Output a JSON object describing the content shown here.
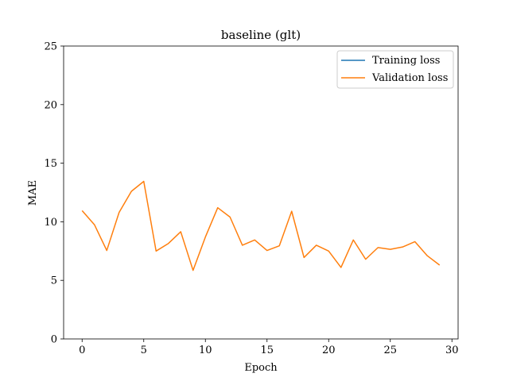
{
  "chart_data": {
    "type": "line",
    "title": "baseline (glt)",
    "xlabel": "Epoch",
    "ylabel": "MAE",
    "xlim": [
      -1.5,
      30.5
    ],
    "ylim": [
      0,
      25
    ],
    "xticks": [
      0,
      5,
      10,
      15,
      20,
      25,
      30
    ],
    "yticks": [
      0,
      5,
      10,
      15,
      20,
      25
    ],
    "grid": false,
    "legend_position": "top-right",
    "series": [
      {
        "name": "Training loss",
        "color": "#1f77b4",
        "x": [],
        "values": []
      },
      {
        "name": "Validation loss",
        "color": "#ff7f0e",
        "x": [
          0,
          1,
          2,
          3,
          4,
          5,
          6,
          7,
          8,
          9,
          10,
          11,
          12,
          13,
          14,
          15,
          16,
          17,
          18,
          19,
          20,
          21,
          22,
          23,
          24,
          25,
          26,
          27,
          28,
          29
        ],
        "values": [
          10.95,
          9.75,
          7.55,
          10.8,
          12.6,
          13.45,
          7.5,
          8.15,
          9.15,
          5.85,
          8.7,
          11.2,
          10.4,
          8.0,
          8.45,
          7.55,
          7.95,
          10.9,
          6.95,
          8.0,
          7.5,
          6.1,
          8.45,
          6.8,
          7.8,
          7.65,
          7.85,
          8.3,
          7.1,
          6.3
        ]
      }
    ]
  }
}
